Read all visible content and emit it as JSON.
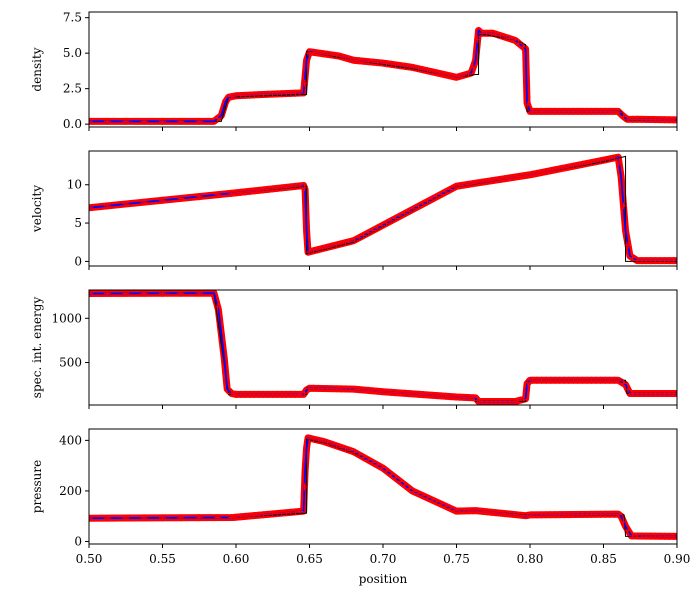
{
  "chart_data": {
    "type": "line",
    "xlabel": "position",
    "xlim": [
      0.5,
      0.9
    ],
    "xticks": [
      0.5,
      0.55,
      0.6,
      0.65,
      0.7,
      0.75,
      0.8,
      0.85,
      0.9
    ],
    "xtick_labels": [
      "0.50",
      "0.55",
      "0.60",
      "0.65",
      "0.70",
      "0.75",
      "0.80",
      "0.85",
      "0.90"
    ],
    "colors": {
      "exact": "#000000",
      "thick": "#ff0000",
      "line": "#0000ff",
      "markers": "#ff0000"
    },
    "panels": [
      {
        "ylabel": "density",
        "ylim": [
          -0.2,
          7.9
        ],
        "yticks": [
          0.0,
          2.5,
          5.0,
          7.5
        ],
        "ytick_labels": [
          "0.0",
          "2.5",
          "5.0",
          "7.5"
        ],
        "exact": {
          "x": [
            0.5,
            0.59,
            0.595,
            0.648,
            0.648,
            0.65,
            0.68,
            0.7,
            0.72,
            0.75,
            0.763,
            0.765,
            0.765,
            0.77,
            0.79,
            0.797,
            0.798,
            0.8,
            0.862,
            0.865,
            0.9
          ],
          "y": [
            0.2,
            0.2,
            1.9,
            2.1,
            5.1,
            5.1,
            4.5,
            4.2,
            3.9,
            3.3,
            3.5,
            3.5,
            6.3,
            6.3,
            5.9,
            5.6,
            0.9,
            0.9,
            0.9,
            0.3,
            0.3
          ]
        },
        "simulation": {
          "x": [
            0.5,
            0.585,
            0.59,
            0.593,
            0.595,
            0.6,
            0.62,
            0.646,
            0.648,
            0.65,
            0.67,
            0.68,
            0.7,
            0.72,
            0.75,
            0.76,
            0.763,
            0.765,
            0.767,
            0.775,
            0.79,
            0.797,
            0.798,
            0.8,
            0.85,
            0.86,
            0.863,
            0.866,
            0.9
          ],
          "y": [
            0.2,
            0.2,
            0.6,
            1.6,
            1.9,
            2.0,
            2.1,
            2.2,
            4.5,
            5.1,
            4.8,
            4.5,
            4.3,
            4.0,
            3.3,
            3.6,
            4.5,
            6.6,
            6.4,
            6.4,
            5.9,
            5.3,
            1.5,
            0.9,
            0.9,
            0.9,
            0.6,
            0.35,
            0.3
          ]
        }
      },
      {
        "ylabel": "velocity",
        "ylim": [
          -0.6,
          14.4
        ],
        "yticks": [
          0,
          5,
          10
        ],
        "ytick_labels": [
          "0",
          "5",
          "10"
        ],
        "exact": {
          "x": [
            0.5,
            0.598,
            0.648,
            0.648,
            0.68,
            0.75,
            0.763,
            0.8,
            0.85,
            0.865,
            0.865,
            0.9
          ],
          "y": [
            7.0,
            8.9,
            9.8,
            1.0,
            2.5,
            9.7,
            10.1,
            11.3,
            13.0,
            13.7,
            0.0,
            0.0
          ]
        },
        "simulation": {
          "x": [
            0.5,
            0.598,
            0.646,
            0.647,
            0.648,
            0.649,
            0.68,
            0.75,
            0.763,
            0.8,
            0.85,
            0.86,
            0.862,
            0.865,
            0.868,
            0.873,
            0.9
          ],
          "y": [
            7.0,
            8.9,
            9.9,
            9.4,
            4.0,
            1.2,
            2.7,
            9.8,
            10.2,
            11.3,
            13.2,
            13.6,
            11.0,
            4.0,
            0.7,
            0.1,
            0.1
          ]
        }
      },
      {
        "ylabel": "spec. int. energy",
        "ylim": [
          20,
          1320
        ],
        "yticks": [
          500,
          1000
        ],
        "ytick_labels": [
          "500",
          "1000"
        ],
        "exact": {
          "x": [
            0.5,
            0.585,
            0.595,
            0.648,
            0.648,
            0.68,
            0.7,
            0.75,
            0.763,
            0.763,
            0.797,
            0.798,
            0.8,
            0.865,
            0.866,
            0.9
          ],
          "y": [
            1280,
            1280,
            140,
            140,
            210,
            200,
            170,
            110,
            100,
            60,
            60,
            290,
            300,
            300,
            150,
            150
          ]
        },
        "simulation": {
          "x": [
            0.5,
            0.585,
            0.588,
            0.592,
            0.594,
            0.597,
            0.6,
            0.646,
            0.648,
            0.65,
            0.68,
            0.7,
            0.75,
            0.763,
            0.765,
            0.79,
            0.797,
            0.798,
            0.8,
            0.86,
            0.865,
            0.868,
            0.9
          ],
          "y": [
            1280,
            1285,
            1100,
            550,
            200,
            150,
            140,
            140,
            190,
            210,
            200,
            170,
            110,
            100,
            60,
            60,
            90,
            260,
            300,
            300,
            250,
            150,
            150
          ]
        }
      },
      {
        "ylabel": "pressure",
        "ylim": [
          -10,
          445
        ],
        "yticks": [
          0,
          200,
          400
        ],
        "ytick_labels": [
          "0",
          "200",
          "400"
        ],
        "exact": {
          "x": [
            0.5,
            0.598,
            0.648,
            0.648,
            0.66,
            0.68,
            0.7,
            0.72,
            0.75,
            0.763,
            0.797,
            0.8,
            0.862,
            0.864,
            0.865,
            0.9
          ],
          "y": [
            92,
            95,
            112,
            405,
            390,
            350,
            290,
            200,
            120,
            122,
            105,
            105,
            105,
            105,
            20,
            20
          ]
        },
        "simulation": {
          "x": [
            0.5,
            0.598,
            0.646,
            0.647,
            0.648,
            0.649,
            0.66,
            0.68,
            0.7,
            0.72,
            0.75,
            0.763,
            0.797,
            0.8,
            0.86,
            0.862,
            0.865,
            0.869,
            0.9
          ],
          "y": [
            92,
            95,
            120,
            280,
            370,
            410,
            395,
            355,
            290,
            200,
            120,
            122,
            102,
            105,
            108,
            100,
            60,
            22,
            20
          ]
        }
      }
    ]
  }
}
